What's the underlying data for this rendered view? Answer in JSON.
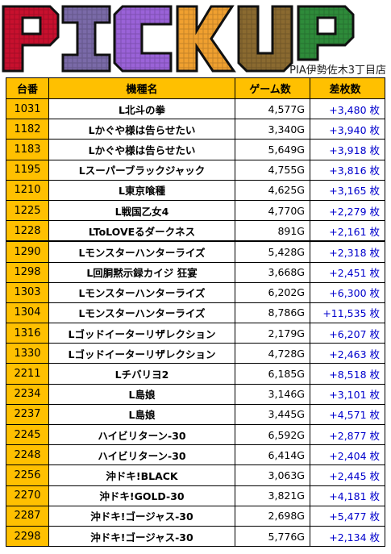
{
  "banner": {
    "title_letters": [
      "P",
      "I",
      "C",
      "K",
      "U",
      "P"
    ],
    "store_name": "PIA伊勢佐木3丁目店",
    "colors": {
      "P1": "#c8102e",
      "I": "#6a5a9a",
      "C": "#8a5ac8",
      "K": "#f0a030",
      "U": "#8a6a30",
      "P2": "#2e8b3a"
    }
  },
  "table": {
    "headers": {
      "no": "台番",
      "name": "機種名",
      "games": "ゲーム数",
      "diff": "差枚数"
    },
    "rows": [
      {
        "no": "1031",
        "name": "L北斗の拳",
        "games": "4,577G",
        "diff": "+3,480 枚"
      },
      {
        "no": "1182",
        "name": "Lかぐや様は告らせたい",
        "games": "3,340G",
        "diff": "+3,940 枚"
      },
      {
        "no": "1183",
        "name": "Lかぐや様は告らせたい",
        "games": "5,649G",
        "diff": "+3,918 枚"
      },
      {
        "no": "1195",
        "name": "Lスーパーブラックジャック",
        "games": "4,755G",
        "diff": "+3,816 枚"
      },
      {
        "no": "1210",
        "name": "L東京喰種",
        "games": "4,625G",
        "diff": "+3,165 枚"
      },
      {
        "no": "1225",
        "name": "L戦国乙女4",
        "games": "4,770G",
        "diff": "+2,279 枚"
      },
      {
        "no": "1228",
        "name": "LToLOVEるダークネス",
        "games": "891G",
        "diff": "+2,161 枚"
      },
      {
        "no": "1290",
        "name": "Lモンスターハンターライズ",
        "games": "5,428G",
        "diff": "+2,318 枚"
      },
      {
        "no": "1298",
        "name": "L回胴黙示録カイジ 狂宴",
        "games": "3,668G",
        "diff": "+2,451 枚"
      },
      {
        "no": "1303",
        "name": "Lモンスターハンターライズ",
        "games": "6,202G",
        "diff": "+6,300 枚"
      },
      {
        "no": "1304",
        "name": "Lモンスターハンターライズ",
        "games": "8,786G",
        "diff": "+11,535 枚"
      },
      {
        "no": "1316",
        "name": "Lゴッドイーターリザレクション",
        "games": "2,179G",
        "diff": "+6,207 枚"
      },
      {
        "no": "1330",
        "name": "Lゴッドイーターリザレクション",
        "games": "4,728G",
        "diff": "+2,463 枚"
      },
      {
        "no": "2211",
        "name": "Lチバリヨ2",
        "games": "6,185G",
        "diff": "+8,518 枚"
      },
      {
        "no": "2234",
        "name": "L島娘",
        "games": "3,146G",
        "diff": "+3,101 枚"
      },
      {
        "no": "2237",
        "name": "L島娘",
        "games": "3,445G",
        "diff": "+4,571 枚"
      },
      {
        "no": "2245",
        "name": "ハイビリターン-30",
        "games": "6,592G",
        "diff": "+2,877 枚"
      },
      {
        "no": "2248",
        "name": "ハイビリターン-30",
        "games": "6,414G",
        "diff": "+2,404 枚"
      },
      {
        "no": "2256",
        "name": "沖ドキ!BLACK",
        "games": "3,063G",
        "diff": "+2,445 枚"
      },
      {
        "no": "2270",
        "name": "沖ドキ!GOLD-30",
        "games": "3,821G",
        "diff": "+4,181 枚"
      },
      {
        "no": "2287",
        "name": "沖ドキ!ゴージャス-30",
        "games": "2,698G",
        "diff": "+5,477 枚"
      },
      {
        "no": "2298",
        "name": "沖ドキ!ゴージャス-30",
        "games": "5,776G",
        "diff": "+2,134 枚"
      }
    ]
  }
}
